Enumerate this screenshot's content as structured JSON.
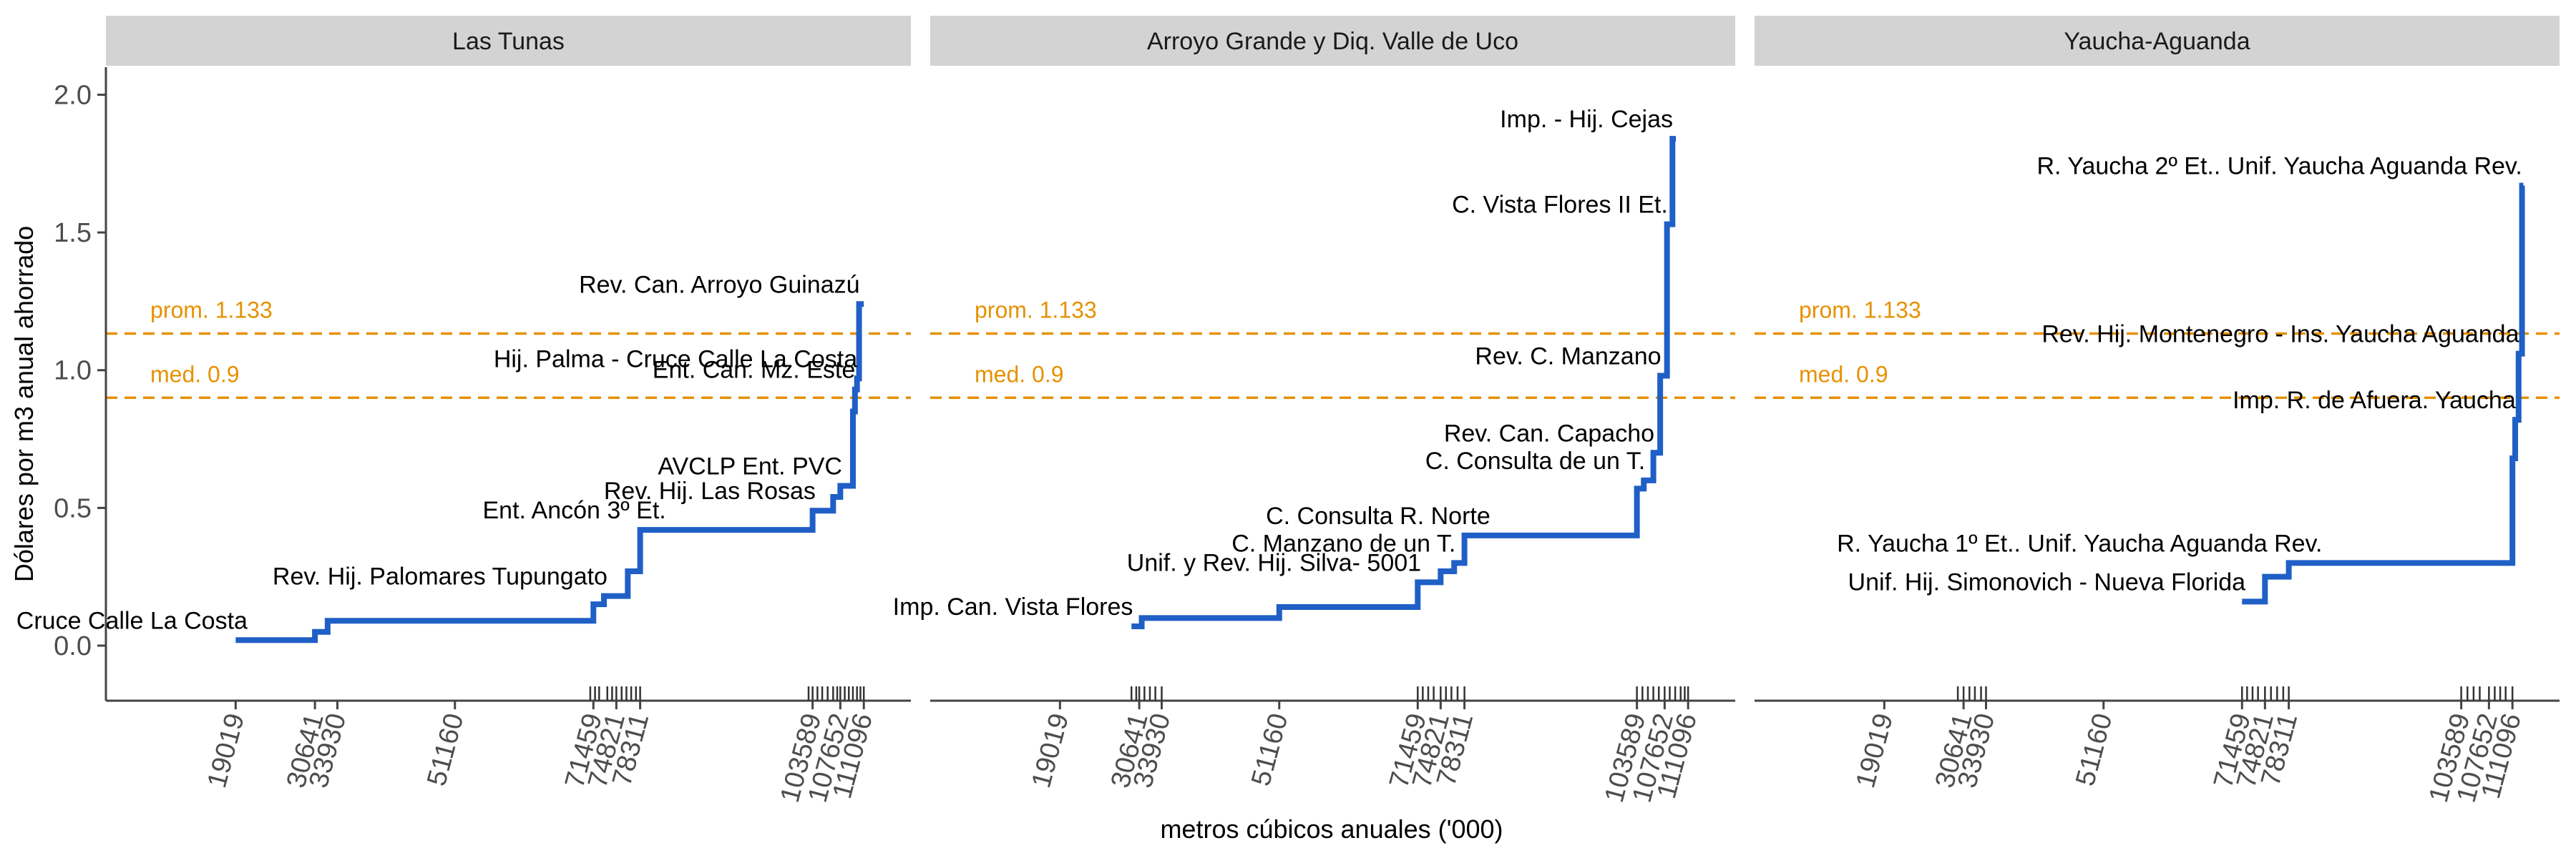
{
  "chart_data": {
    "type": "line",
    "subtype": "step",
    "xlabel": "metros cúbicos anuales ('000)",
    "ylabel": "Dólares por m3 anual ahorrado",
    "ylim": [
      -0.2,
      2.1
    ],
    "xlim": [
      0,
      118000
    ],
    "y_ticks": [
      "0.0",
      "0.5",
      "1.0",
      "1.5",
      "2.0"
    ],
    "y_tick_values": [
      0,
      0.5,
      1.0,
      1.5,
      2.0
    ],
    "x_ticks": [
      "19019",
      "30641",
      "33930",
      "51160",
      "71459",
      "74821",
      "78311",
      "103589",
      "107652",
      "111096"
    ],
    "x_tick_values": [
      19019,
      30641,
      33930,
      51160,
      71459,
      74821,
      78311,
      103589,
      107652,
      111096
    ],
    "grid": false,
    "legend": "none",
    "colors": {
      "line": "#1f5fc6",
      "reference": "#e69100",
      "strip": "#d3d3d3",
      "axis": "#444444"
    },
    "reference_lines": [
      {
        "label": "prom. 1.133",
        "y": 1.133
      },
      {
        "label": "med. 0.9",
        "y": 0.9
      }
    ],
    "panels": [
      {
        "title": "Las Tunas",
        "rug": [
          71000,
          71700,
          72300,
          73500,
          74200,
          74821,
          75600,
          76300,
          77000,
          77700,
          78311,
          103000,
          103589,
          104300,
          105000,
          105800,
          106600,
          107200,
          107652,
          108300,
          108900,
          109500,
          110100,
          110600,
          111096
        ],
        "steps": [
          {
            "x": 19019,
            "y": 0.02,
            "label": "Cruce Calle La Costa"
          },
          {
            "x": 30641,
            "y": 0.05,
            "label": ""
          },
          {
            "x": 32500,
            "y": 0.09,
            "label": ""
          },
          {
            "x": 71459,
            "y": 0.15,
            "label": ""
          },
          {
            "x": 73000,
            "y": 0.18,
            "label": "Rev. Hij. Palomares Tupungato"
          },
          {
            "x": 76500,
            "y": 0.27,
            "label": ""
          },
          {
            "x": 78311,
            "y": 0.42,
            "label": "Ent. Ancón 3º Et."
          },
          {
            "x": 103589,
            "y": 0.49,
            "label": "Rev. Hij. Las Rosas"
          },
          {
            "x": 106600,
            "y": 0.54,
            "label": ""
          },
          {
            "x": 107652,
            "y": 0.58,
            "label": "AVCLP Ent. PVC"
          },
          {
            "x": 109500,
            "y": 0.85,
            "label": ""
          },
          {
            "x": 109800,
            "y": 0.93,
            "label": "Ent. Can. Mz. Este"
          },
          {
            "x": 110100,
            "y": 0.97,
            "label": "Hij. Palma - Cruce Calle La Costa"
          },
          {
            "x": 110400,
            "y": 1.24,
            "label": "Rev. Can. Arroyo Guinazú"
          }
        ],
        "x_end": 111096
      },
      {
        "title": "Arroyo Grande y Diq. Valle de Uco",
        "rug": [
          29500,
          30200,
          30641,
          31400,
          32200,
          33000,
          33930,
          71459,
          72200,
          73000,
          73800,
          74821,
          75600,
          76400,
          77300,
          78311,
          103589,
          104400,
          105200,
          106000,
          106800,
          107652,
          108400,
          109200,
          110000,
          110600,
          111096
        ],
        "steps": [
          {
            "x": 29500,
            "y": 0.07,
            "label": "Imp. Can. Vista Flores"
          },
          {
            "x": 31000,
            "y": 0.1,
            "label": ""
          },
          {
            "x": 51160,
            "y": 0.14,
            "label": ""
          },
          {
            "x": 71459,
            "y": 0.23,
            "label": "Unif. y Rev.  Hij. Silva- 5001"
          },
          {
            "x": 74821,
            "y": 0.27,
            "label": ""
          },
          {
            "x": 76800,
            "y": 0.3,
            "label": "C. Manzano de un T."
          },
          {
            "x": 78311,
            "y": 0.4,
            "label": "C. Consulta R. Norte"
          },
          {
            "x": 103589,
            "y": 0.57,
            "label": ""
          },
          {
            "x": 104600,
            "y": 0.6,
            "label": "C. Consulta de un T."
          },
          {
            "x": 106000,
            "y": 0.7,
            "label": "Rev. Can. Capacho"
          },
          {
            "x": 107000,
            "y": 0.98,
            "label": "Rev. C. Manzano"
          },
          {
            "x": 108000,
            "y": 1.53,
            "label": "C. Vista Flores II Et."
          },
          {
            "x": 108800,
            "y": 1.84,
            "label": "Imp. - Hij. Cejas"
          }
        ],
        "x_end": 109300
      },
      {
        "title": "Yaucha-Aguanda",
        "rug": [
          29800,
          30641,
          31500,
          32300,
          33200,
          33930,
          71459,
          72200,
          73000,
          73800,
          74821,
          75700,
          76600,
          77500,
          78311,
          103589,
          104500,
          105400,
          106300,
          107652,
          108500,
          109300,
          110100,
          111096
        ],
        "steps": [
          {
            "x": 71459,
            "y": 0.16,
            "label": "Unif. Hij. Simonovich - Nueva Florida"
          },
          {
            "x": 74821,
            "y": 0.25,
            "label": ""
          },
          {
            "x": 78311,
            "y": 0.3,
            "label": "R. Yaucha 1º Et.. Unif. Yaucha Aguanda Rev."
          },
          {
            "x": 111096,
            "y": 0.68,
            "label": ""
          },
          {
            "x": 111500,
            "y": 0.82,
            "label": "Imp. R. de Afuera. Yaucha"
          },
          {
            "x": 112000,
            "y": 1.06,
            "label": "Rev. Hij. Montenegro - Ins. Yaucha Aguanda"
          },
          {
            "x": 112500,
            "y": 1.67,
            "label": "R. Yaucha 2º Et.. Unif. Yaucha Aguanda Rev."
          }
        ],
        "x_end": 112700
      }
    ]
  }
}
